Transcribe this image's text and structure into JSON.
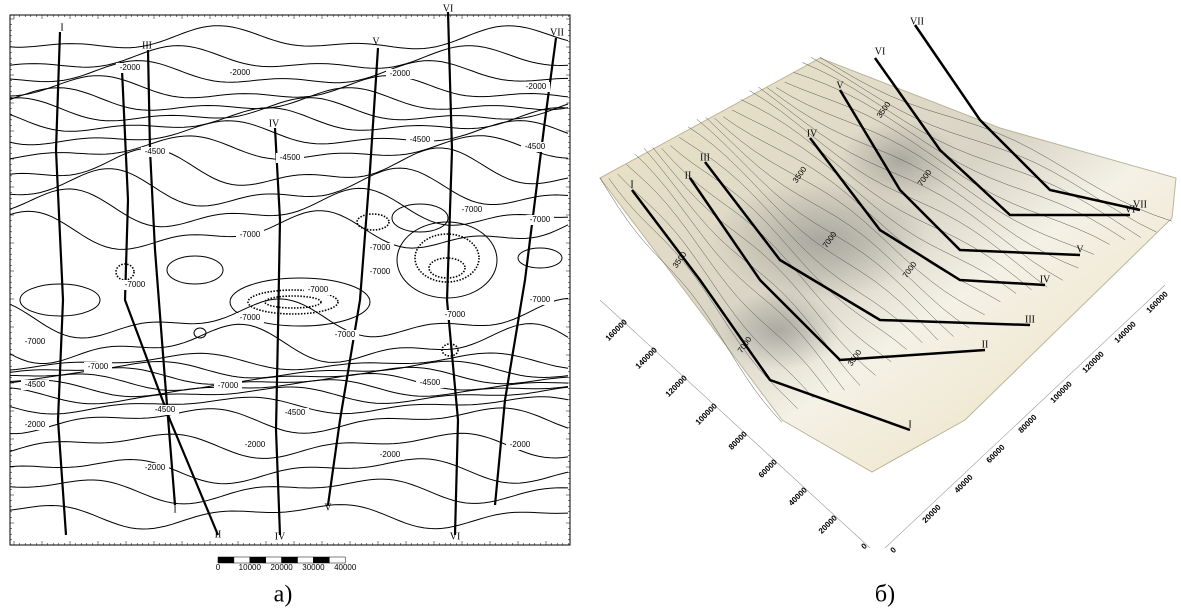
{
  "panel_a": {
    "caption": "а)",
    "profiles": [
      "I",
      "II",
      "III",
      "IV",
      "V",
      "VI",
      "VII"
    ],
    "contour_labels": [
      "-2000",
      "-4500",
      "-7000"
    ],
    "scale_bar": [
      "0",
      "10000",
      "20000",
      "30000",
      "40000"
    ]
  },
  "panel_b": {
    "caption": "б)",
    "profiles": [
      "I",
      "II",
      "III",
      "IV",
      "V",
      "VI",
      "VII"
    ],
    "contour_labels": [
      "3500",
      "7000"
    ],
    "axis_left": [
      "0",
      "20000",
      "40000",
      "60000",
      "80000",
      "100000",
      "120000",
      "140000",
      "160000"
    ],
    "axis_right": [
      "0",
      "20000",
      "40000",
      "60000",
      "80000",
      "100000",
      "120000",
      "140000",
      "160000"
    ]
  }
}
